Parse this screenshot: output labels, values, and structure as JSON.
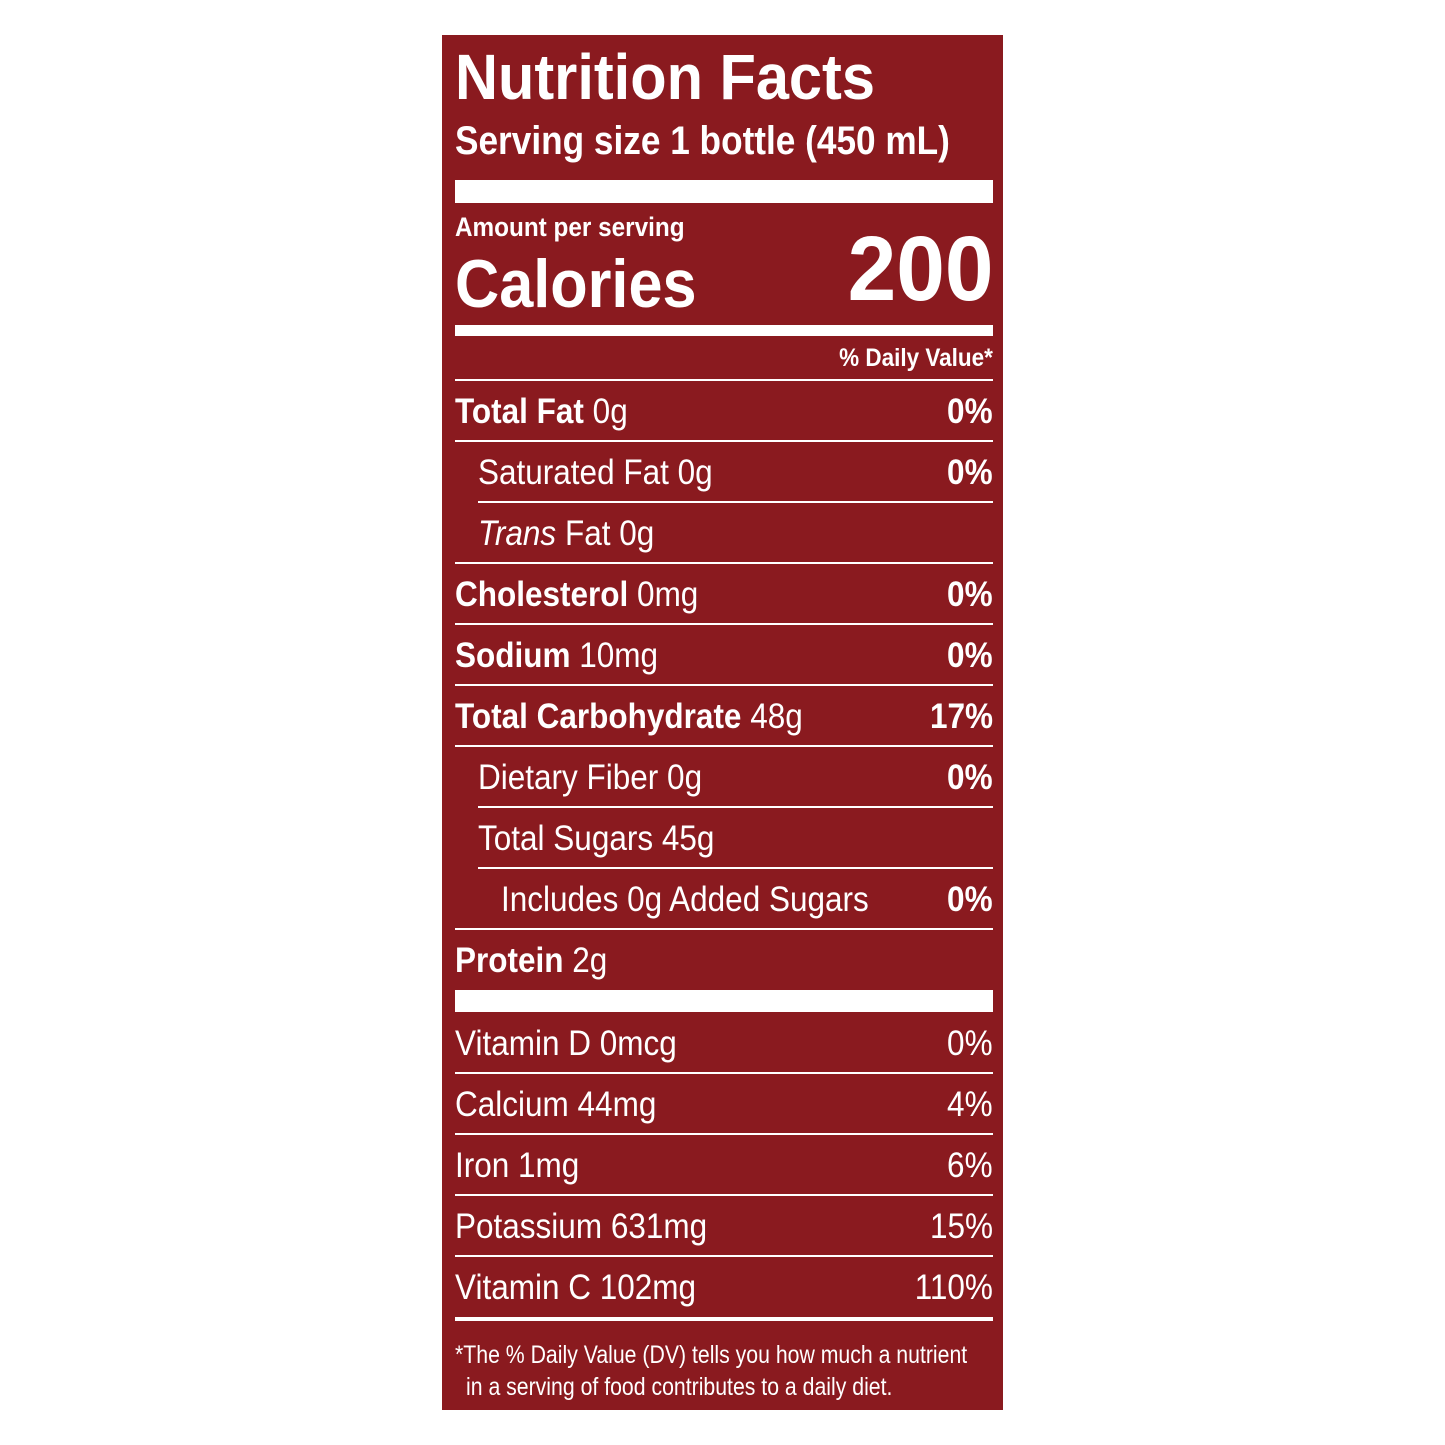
{
  "label": {
    "title": "Nutrition Facts",
    "serving_size": "Serving size 1 bottle (450 mL)",
    "amount_per_serving": "Amount per serving",
    "calories_label": "Calories",
    "calories_value": "200",
    "daily_value_header": "% Daily Value*",
    "nutrients": [
      {
        "name": "Total Fat",
        "amount": "0g",
        "dv": "0%",
        "bold": true,
        "indent": 0
      },
      {
        "name": "Saturated Fat",
        "amount": "0g",
        "dv": "0%",
        "bold": false,
        "indent": 1
      },
      {
        "name_italic": "Trans",
        "name": "Fat",
        "amount": "0g",
        "bold": false,
        "indent": 1
      },
      {
        "name": "Cholesterol",
        "amount": "0mg",
        "dv": "0%",
        "bold": true,
        "indent": 0
      },
      {
        "name": "Sodium",
        "amount": "10mg",
        "dv": "0%",
        "bold": true,
        "indent": 0
      },
      {
        "name": "Total Carbohydrate",
        "amount": "48g",
        "dv": "17%",
        "bold": true,
        "indent": 0
      },
      {
        "name": "Dietary Fiber",
        "amount": "0g",
        "dv": "0%",
        "bold": false,
        "indent": 1
      },
      {
        "name": "Total Sugars",
        "amount": "45g",
        "bold": false,
        "indent": 1
      },
      {
        "name": "Includes 0g Added Sugars",
        "dv": "0%",
        "bold": false,
        "indent": 2
      },
      {
        "name": "Protein",
        "amount": "2g",
        "bold": true,
        "indent": 0
      }
    ],
    "vitamins": [
      {
        "name": "Vitamin D",
        "amount": "0mcg",
        "dv": "0%"
      },
      {
        "name": "Calcium",
        "amount": "44mg",
        "dv": "4%"
      },
      {
        "name": "Iron",
        "amount": "1mg",
        "dv": "6%"
      },
      {
        "name": "Potassium",
        "amount": "631mg",
        "dv": "15%"
      },
      {
        "name": "Vitamin C",
        "amount": "102mg",
        "dv": "110%"
      }
    ],
    "footnote": [
      "*The % Daily Value (DV) tells you how much a nutrient",
      "in a serving of food contributes to a daily diet."
    ]
  }
}
